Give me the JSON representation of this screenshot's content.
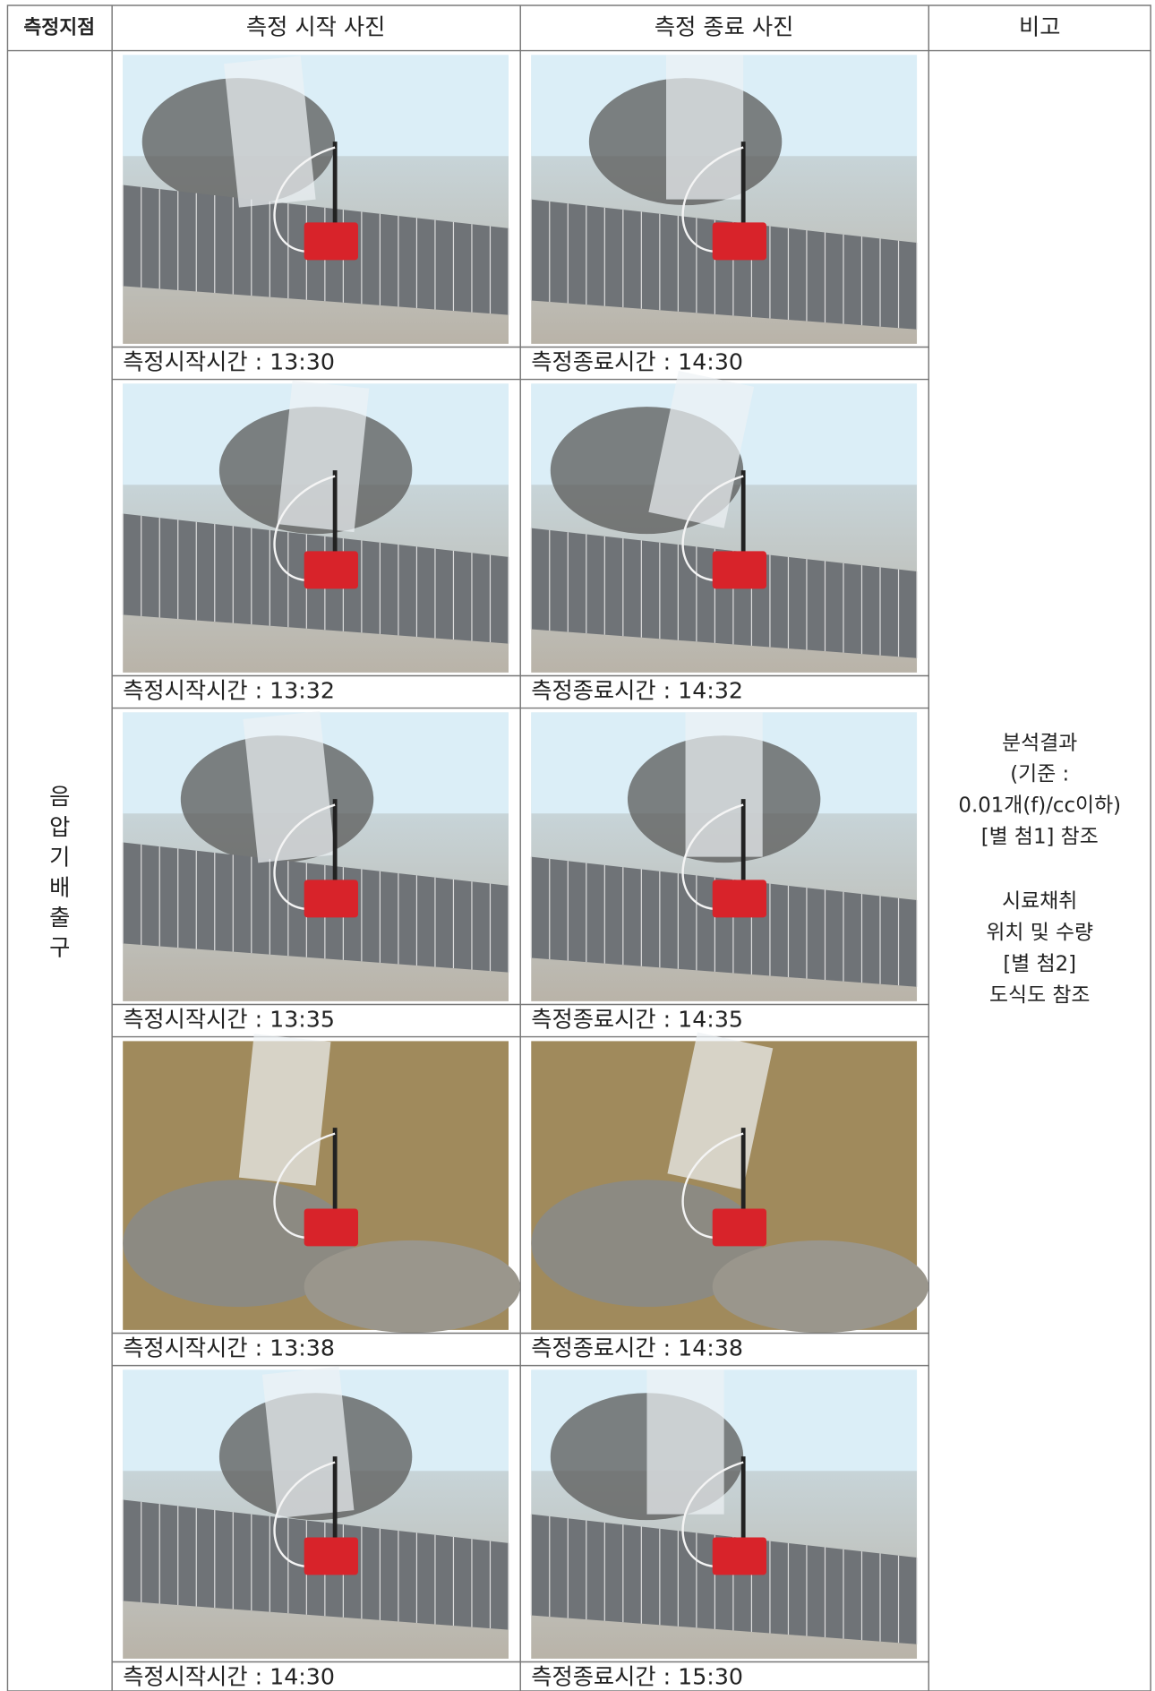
{
  "header": {
    "columns": [
      "측정지점",
      "측정 시작 사진",
      "측정 종료 사진",
      "비고"
    ]
  },
  "location": "음압기배출구",
  "rows": [
    {
      "start_caption": "측정시작시간 : 13:30",
      "end_caption": "측정종료시간 : 14:30"
    },
    {
      "start_caption": "측정시작시간 : 13:32",
      "end_caption": "측정종료시간 : 14:32"
    },
    {
      "start_caption": "측정시작시간 : 13:35",
      "end_caption": "측정종료시간 : 14:35"
    },
    {
      "start_caption": "측정시작시간 : 13:38",
      "end_caption": "측정종료시간 : 14:38"
    },
    {
      "start_caption": "측정시작시간 : 14:30",
      "end_caption": "측정종료시간 : 15:30"
    }
  ],
  "remarks": [
    [
      "분석결과",
      "(기준 :",
      "0.01개(f)/cc이하)",
      "[별 첨1] 참조"
    ],
    [
      "시료채취",
      "위치 및 수량",
      "[별 첨2]",
      "도식도 참조"
    ]
  ]
}
